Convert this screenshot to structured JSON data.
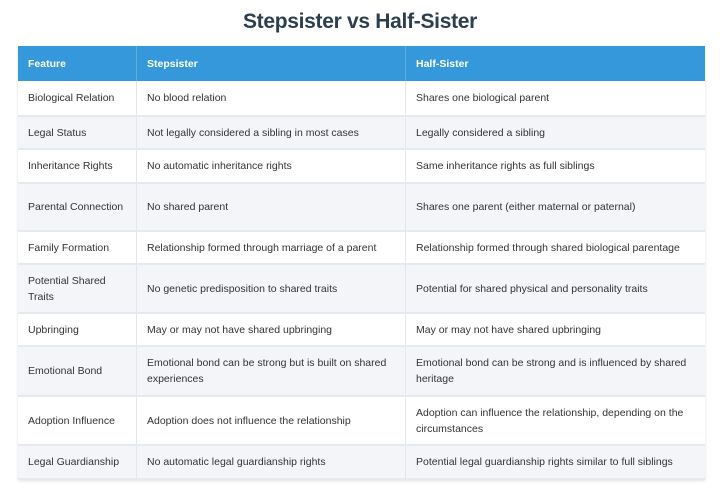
{
  "title": "Stepsister vs Half-Sister",
  "colors": {
    "header": "#3498db",
    "title": "#2c3e50",
    "alt_row": "#f3f5f8"
  },
  "headers": [
    "Feature",
    "Stepsister",
    "Half-Sister"
  ],
  "rows": [
    [
      "Biological Relation",
      "No blood relation",
      "Shares one biological parent"
    ],
    [
      "Legal Status",
      "Not legally considered a sibling in most cases",
      "Legally considered a sibling"
    ],
    [
      "Inheritance Rights",
      "No automatic inheritance rights",
      "Same inheritance rights as full siblings"
    ],
    [
      "Parental Connection",
      "No shared parent",
      "Shares one parent (either maternal or paternal)"
    ],
    [
      "Family Formation",
      "Relationship formed through marriage of a parent",
      "Relationship formed through shared biological parentage"
    ],
    [
      "Potential Shared Traits",
      "No genetic predisposition to shared traits",
      "Potential for shared physical and personality traits"
    ],
    [
      "Upbringing",
      "May or may not have shared upbringing",
      "May or may not have shared upbringing"
    ],
    [
      "Emotional Bond",
      "Emotional bond can be strong but is built on shared experiences",
      "Emotional bond can be strong and is influenced by shared heritage"
    ],
    [
      "Adoption Influence",
      "Adoption does not influence the relationship",
      "Adoption can influence the relationship, depending on the circumstances"
    ],
    [
      "Legal Guardianship",
      "No automatic legal guardianship rights",
      "Potential legal guardianship rights similar to full siblings"
    ]
  ]
}
